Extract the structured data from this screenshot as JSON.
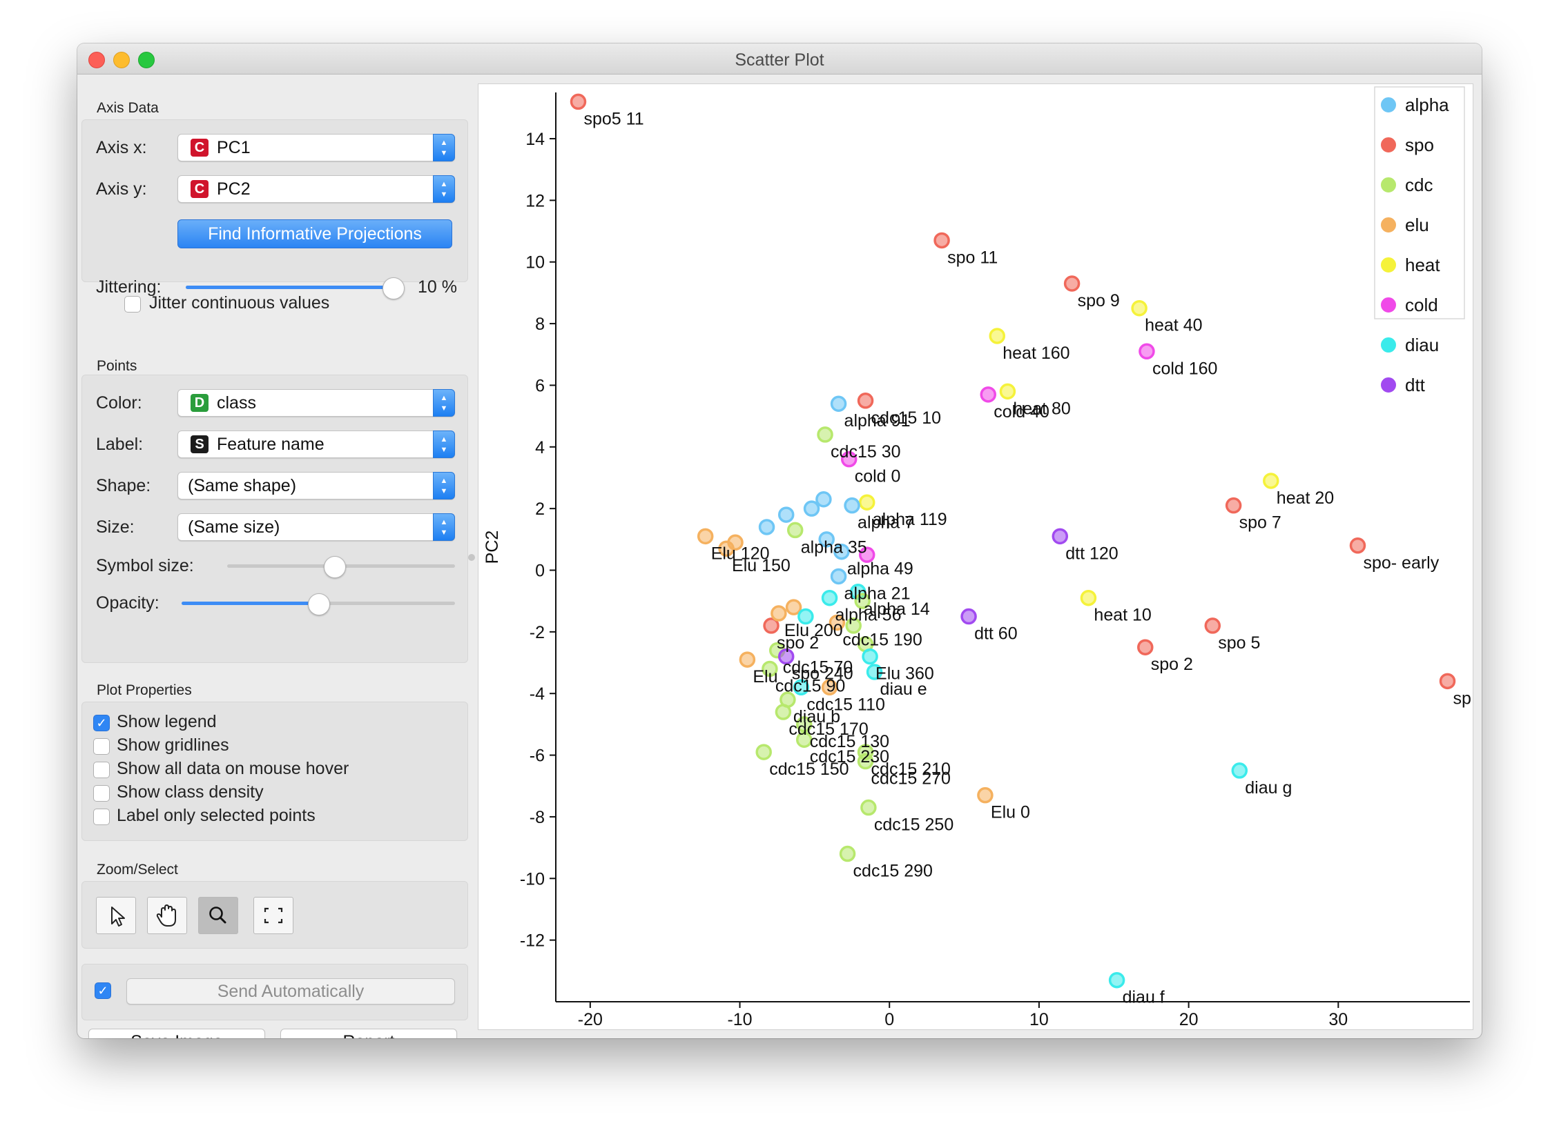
{
  "window": {
    "title": "Scatter Plot"
  },
  "axis_data": {
    "section_title": "Axis Data",
    "x_label": "Axis x:",
    "x_badge": "C",
    "x_value": "PC1",
    "y_label": "Axis y:",
    "y_badge": "C",
    "y_value": "PC2",
    "find_button": "Find Informative Projections",
    "jitter_label": "Jittering:",
    "jitter_value": "10 %",
    "jitter_fraction": 0.98,
    "jitter_continuous_label": "Jitter continuous values",
    "jitter_continuous_checked": false
  },
  "points": {
    "section_title": "Points",
    "color_label": "Color:",
    "color_badge": "D",
    "color_value": "class",
    "label_label": "Label:",
    "label_badge": "S",
    "label_value": "Feature name",
    "shape_label": "Shape:",
    "shape_value": "(Same shape)",
    "size_label": "Size:",
    "size_value": "(Same size)",
    "symbol_size_label": "Symbol size:",
    "symbol_size_fraction": 0.47,
    "opacity_label": "Opacity:",
    "opacity_fraction": 0.5
  },
  "plot_properties": {
    "section_title": "Plot Properties",
    "options": [
      {
        "label": "Show legend",
        "checked": true
      },
      {
        "label": "Show gridlines",
        "checked": false
      },
      {
        "label": "Show all data on mouse hover",
        "checked": false
      },
      {
        "label": "Show class density",
        "checked": false
      },
      {
        "label": "Label only selected points",
        "checked": false
      }
    ]
  },
  "zoom_select": {
    "section_title": "Zoom/Select",
    "tools": [
      {
        "name": "pointer-icon",
        "active": false
      },
      {
        "name": "hand-icon",
        "active": false
      },
      {
        "name": "magnifier-icon",
        "active": true
      },
      {
        "name": "fit-view-icon",
        "active": false
      }
    ]
  },
  "bottom": {
    "send_auto_checked": true,
    "send_auto_label": "Send Automatically",
    "save_image_label": "Save Image",
    "report_label": "Report"
  },
  "chart_data": {
    "type": "scatter",
    "xlabel": "PC1",
    "ylabel": "PC2",
    "xlim": [
      -22.3,
      38.8
    ],
    "ylim": [
      -14,
      15.5
    ],
    "xticks": [
      -20,
      -10,
      0,
      10,
      20,
      30
    ],
    "yticks": [
      -12,
      -10,
      -8,
      -6,
      -4,
      -2,
      0,
      2,
      4,
      6,
      8,
      10,
      12,
      14
    ],
    "grid": false,
    "legend_position": "top-right",
    "colors": {
      "alpha": "#6ec6f5",
      "spo": "#f0685a",
      "cdc": "#b7e86d",
      "elu": "#f5b15f",
      "heat": "#f5f23a",
      "cold": "#f04ae8",
      "diau": "#3aebeb",
      "dtt": "#a14af0"
    },
    "classes": [
      "alpha",
      "spo",
      "cdc",
      "elu",
      "heat",
      "cold",
      "diau",
      "dtt"
    ],
    "points": [
      {
        "x": -20.8,
        "y": 15.2,
        "class": "spo",
        "label": "spo5 11"
      },
      {
        "x": 3.5,
        "y": 10.7,
        "class": "spo",
        "label": "spo 11"
      },
      {
        "x": 12.2,
        "y": 9.3,
        "class": "spo",
        "label": "spo 9"
      },
      {
        "x": 16.7,
        "y": 8.5,
        "class": "heat",
        "label": "heat 40"
      },
      {
        "x": 7.2,
        "y": 7.6,
        "class": "heat",
        "label": "heat 160"
      },
      {
        "x": 17.2,
        "y": 7.1,
        "class": "cold",
        "label": "cold 160"
      },
      {
        "x": 6.6,
        "y": 5.7,
        "class": "cold",
        "label": "cold 40"
      },
      {
        "x": 7.9,
        "y": 5.8,
        "class": "heat",
        "label": "heat 80"
      },
      {
        "x": -1.6,
        "y": 5.5,
        "class": "spo",
        "label": "cdc15 10"
      },
      {
        "x": -3.4,
        "y": 5.4,
        "class": "alpha",
        "label": "alpha 91"
      },
      {
        "x": -4.3,
        "y": 4.4,
        "class": "cdc",
        "label": "cdc15 30"
      },
      {
        "x": -2.7,
        "y": 3.6,
        "class": "cold",
        "label": "cold 0"
      },
      {
        "x": -1.5,
        "y": 2.2,
        "class": "heat",
        "label": "alpha 119"
      },
      {
        "x": 25.5,
        "y": 2.9,
        "class": "heat",
        "label": "heat 20"
      },
      {
        "x": 23.0,
        "y": 2.1,
        "class": "spo",
        "label": "spo 7"
      },
      {
        "x": 31.3,
        "y": 0.8,
        "class": "spo",
        "label": "spo- early"
      },
      {
        "x": 11.4,
        "y": 1.1,
        "class": "dtt",
        "label": "dtt 120"
      },
      {
        "x": -12.3,
        "y": 1.1,
        "class": "elu",
        "label": "Elu 120"
      },
      {
        "x": -10.3,
        "y": 0.9,
        "class": "elu",
        "label": ""
      },
      {
        "x": -10.9,
        "y": 0.7,
        "class": "elu",
        "label": "Elu 150"
      },
      {
        "x": -8.2,
        "y": 1.4,
        "class": "alpha",
        "label": ""
      },
      {
        "x": -6.9,
        "y": 1.8,
        "class": "alpha",
        "label": ""
      },
      {
        "x": -5.2,
        "y": 2.0,
        "class": "alpha",
        "label": ""
      },
      {
        "x": -4.4,
        "y": 2.3,
        "class": "alpha",
        "label": ""
      },
      {
        "x": -2.5,
        "y": 2.1,
        "class": "alpha",
        "label": "alpha 7"
      },
      {
        "x": -6.3,
        "y": 1.3,
        "class": "cdc",
        "label": "alpha 35"
      },
      {
        "x": -4.2,
        "y": 1.0,
        "class": "alpha",
        "label": ""
      },
      {
        "x": -3.2,
        "y": 0.6,
        "class": "alpha",
        "label": "alpha 49"
      },
      {
        "x": -1.5,
        "y": 0.5,
        "class": "cold",
        "label": ""
      },
      {
        "x": -3.4,
        "y": -0.2,
        "class": "alpha",
        "label": "alpha 21"
      },
      {
        "x": -2.1,
        "y": -0.7,
        "class": "diau",
        "label": "alpha 14"
      },
      {
        "x": -4.0,
        "y": -0.9,
        "class": "diau",
        "label": "alpha 56"
      },
      {
        "x": -1.8,
        "y": -1.0,
        "class": "cdc",
        "label": ""
      },
      {
        "x": 5.3,
        "y": -1.5,
        "class": "dtt",
        "label": "dtt 60"
      },
      {
        "x": 13.3,
        "y": -0.9,
        "class": "heat",
        "label": "heat 10"
      },
      {
        "x": 21.6,
        "y": -1.8,
        "class": "spo",
        "label": "spo 5"
      },
      {
        "x": 17.1,
        "y": -2.5,
        "class": "spo",
        "label": "spo 2"
      },
      {
        "x": 37.3,
        "y": -3.6,
        "class": "spo",
        "label": "sp"
      },
      {
        "x": -7.9,
        "y": -1.8,
        "class": "spo",
        "label": "spo 2"
      },
      {
        "x": -7.4,
        "y": -1.4,
        "class": "elu",
        "label": "Elu 200"
      },
      {
        "x": -6.4,
        "y": -1.2,
        "class": "elu",
        "label": ""
      },
      {
        "x": -5.6,
        "y": -1.5,
        "class": "diau",
        "label": ""
      },
      {
        "x": -3.5,
        "y": -1.7,
        "class": "elu",
        "label": "cdc15 190"
      },
      {
        "x": -2.4,
        "y": -1.8,
        "class": "cdc",
        "label": ""
      },
      {
        "x": -1.6,
        "y": -2.4,
        "class": "cdc",
        "label": ""
      },
      {
        "x": -7.5,
        "y": -2.6,
        "class": "cdc",
        "label": "cdc15 70"
      },
      {
        "x": -6.9,
        "y": -2.8,
        "class": "dtt",
        "label": "spo 240"
      },
      {
        "x": -9.5,
        "y": -2.9,
        "class": "elu",
        "label": "Elu"
      },
      {
        "x": -8.0,
        "y": -3.2,
        "class": "cdc",
        "label": "cdc15 90"
      },
      {
        "x": -1.3,
        "y": -2.8,
        "class": "diau",
        "label": "Elu 360"
      },
      {
        "x": -1.0,
        "y": -3.3,
        "class": "diau",
        "label": "diau e"
      },
      {
        "x": -5.9,
        "y": -3.8,
        "class": "diau",
        "label": "cdc15 110"
      },
      {
        "x": -4.0,
        "y": -3.8,
        "class": "elu",
        "label": ""
      },
      {
        "x": -6.8,
        "y": -4.2,
        "class": "cdc",
        "label": "diau b"
      },
      {
        "x": -7.1,
        "y": -4.6,
        "class": "cdc",
        "label": "cdc15 170"
      },
      {
        "x": -5.7,
        "y": -5.0,
        "class": "cdc",
        "label": "cdc15 130"
      },
      {
        "x": -5.7,
        "y": -5.5,
        "class": "cdc",
        "label": "cdc15 230"
      },
      {
        "x": -1.6,
        "y": -5.9,
        "class": "cdc",
        "label": "cdc15 210"
      },
      {
        "x": -8.4,
        "y": -5.9,
        "class": "cdc",
        "label": "cdc15 150"
      },
      {
        "x": -1.6,
        "y": -6.2,
        "class": "cdc",
        "label": "cdc15 270"
      },
      {
        "x": 6.4,
        "y": -7.3,
        "class": "elu",
        "label": "Elu 0"
      },
      {
        "x": 23.4,
        "y": -6.5,
        "class": "diau",
        "label": "diau g"
      },
      {
        "x": -1.4,
        "y": -7.7,
        "class": "cdc",
        "label": "cdc15 250"
      },
      {
        "x": -2.8,
        "y": -9.2,
        "class": "cdc",
        "label": "cdc15 290"
      },
      {
        "x": 15.2,
        "y": -13.3,
        "class": "diau",
        "label": "diau f"
      }
    ]
  }
}
